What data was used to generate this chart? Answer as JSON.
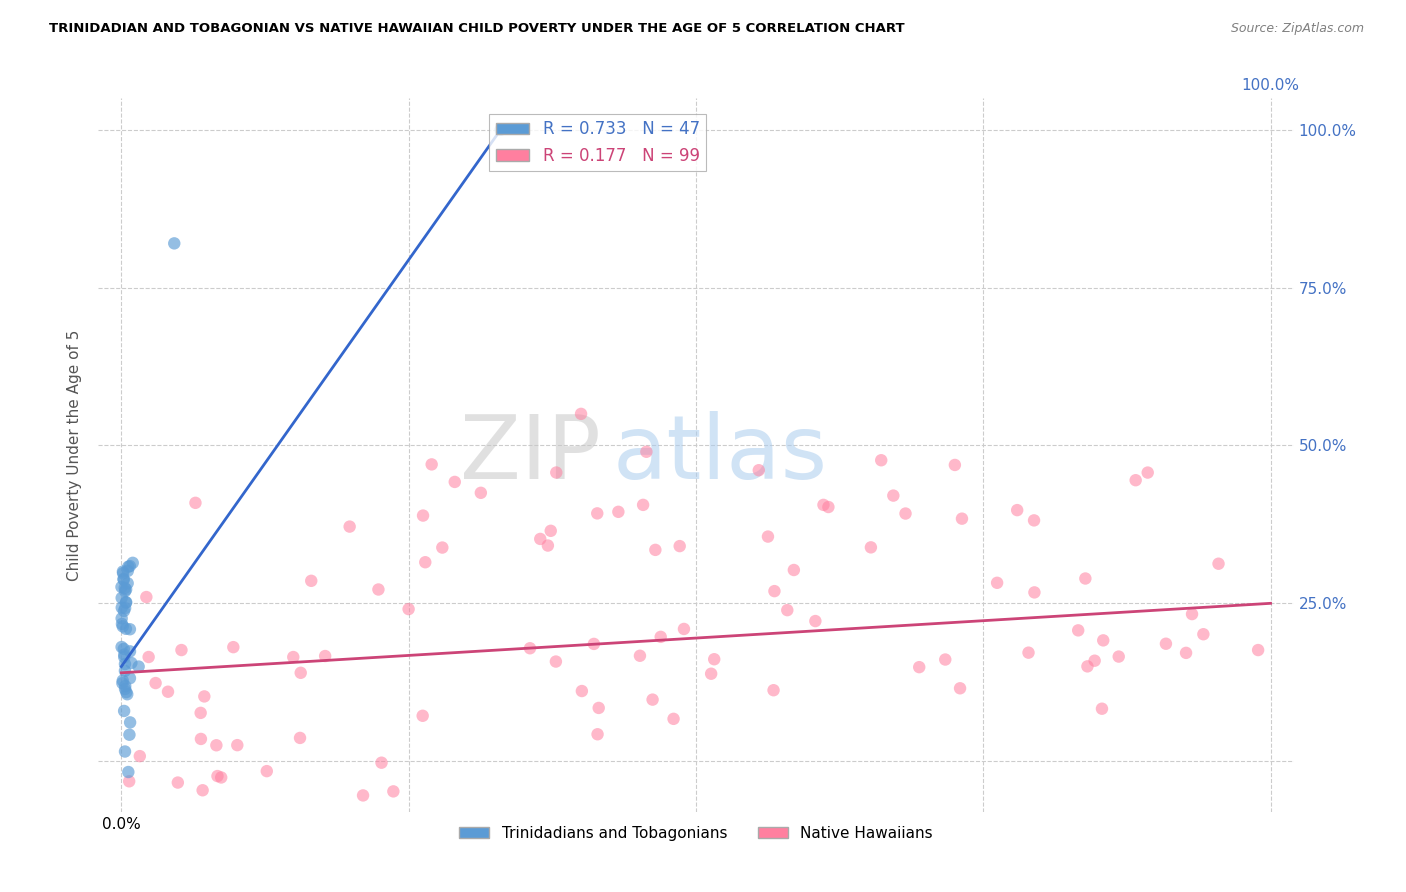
{
  "title": "TRINIDADIAN AND TOBAGONIAN VS NATIVE HAWAIIAN CHILD POVERTY UNDER THE AGE OF 5 CORRELATION CHART",
  "source": "Source: ZipAtlas.com",
  "ylabel": "Child Poverty Under the Age of 5",
  "R1": "0.733",
  "N1": "47",
  "R2": "0.177",
  "N2": "99",
  "legend_label1": "Trinidadians and Tobagonians",
  "legend_label2": "Native Hawaiians",
  "color_blue": "#5b9bd5",
  "color_pink": "#ff7f9f",
  "color_blue_line": "#3366cc",
  "color_pink_line": "#cc4477",
  "watermark_zip": "ZIP",
  "watermark_atlas": "atlas",
  "background_color": "#ffffff",
  "grid_color": "#cccccc",
  "right_axis_color": "#4472c4",
  "xlim": [
    -0.02,
    1.02
  ],
  "ylim": [
    -0.08,
    1.05
  ],
  "xticks": [
    0.0,
    0.25,
    0.5,
    0.75,
    1.0
  ],
  "yticks": [
    0.0,
    0.25,
    0.5,
    0.75,
    1.0
  ],
  "xticklabels": [
    "0.0%",
    "",
    "",
    "",
    ""
  ],
  "yticklabels": [
    "",
    "",
    "",
    "",
    ""
  ],
  "right_yticklabels": [
    "",
    "25.0%",
    "50.0%",
    "75.0%",
    "100.0%"
  ],
  "top_xticklabels": [
    "",
    "",
    "",
    "",
    "100.0%"
  ],
  "trini_line_x": [
    0.0,
    0.33
  ],
  "trini_line_y": [
    0.15,
    1.0
  ],
  "native_line_x": [
    0.0,
    1.0
  ],
  "native_line_y": [
    0.14,
    0.25
  ]
}
